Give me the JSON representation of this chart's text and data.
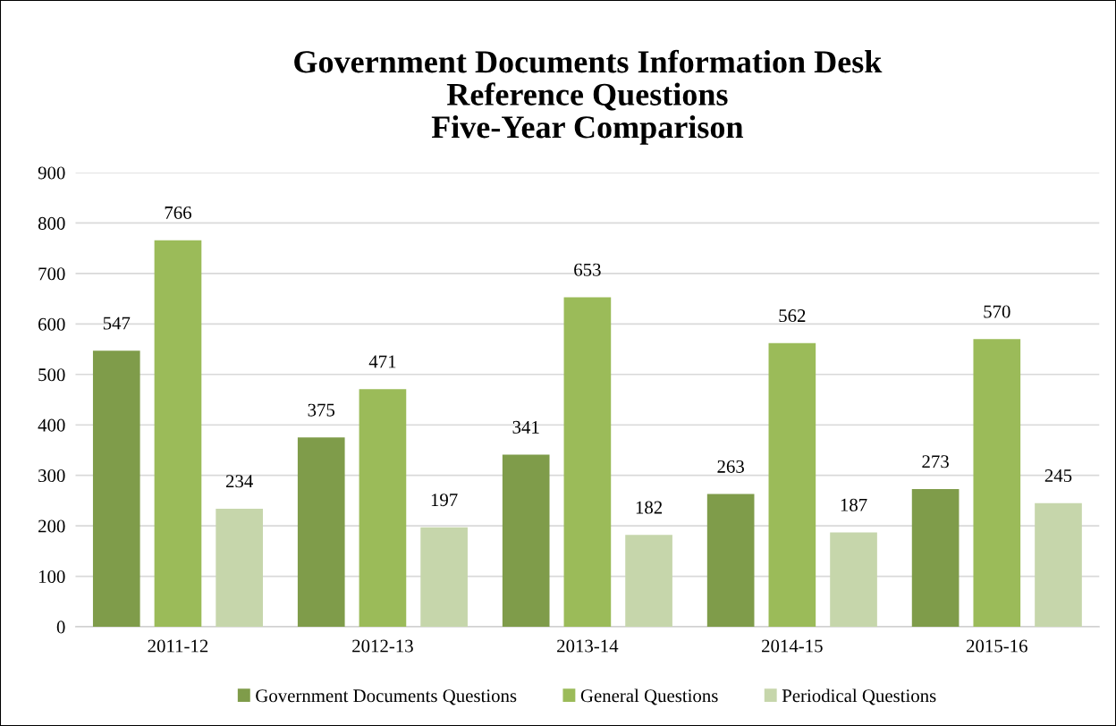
{
  "chart_data": {
    "type": "bar",
    "title": "Government Documents Information Desk\nReference Questions\nFive-Year Comparison",
    "categories": [
      "2011-12",
      "2012-13",
      "2013-14",
      "2014-15",
      "2015-16"
    ],
    "series": [
      {
        "name": "Government Documents Questions",
        "color": "#7f9c4a",
        "values": [
          547,
          375,
          341,
          263,
          273
        ]
      },
      {
        "name": "General Questions",
        "color": "#9bbb59",
        "values": [
          766,
          471,
          653,
          562,
          570
        ]
      },
      {
        "name": "Periodical Questions",
        "color": "#c6d6ab",
        "values": [
          234,
          197,
          182,
          187,
          245
        ]
      }
    ],
    "ylim": [
      0,
      900
    ],
    "yticks": [
      0,
      100,
      200,
      300,
      400,
      500,
      600,
      700,
      800,
      900
    ],
    "grid": "y",
    "legend": "bottom",
    "data_labels": true
  }
}
